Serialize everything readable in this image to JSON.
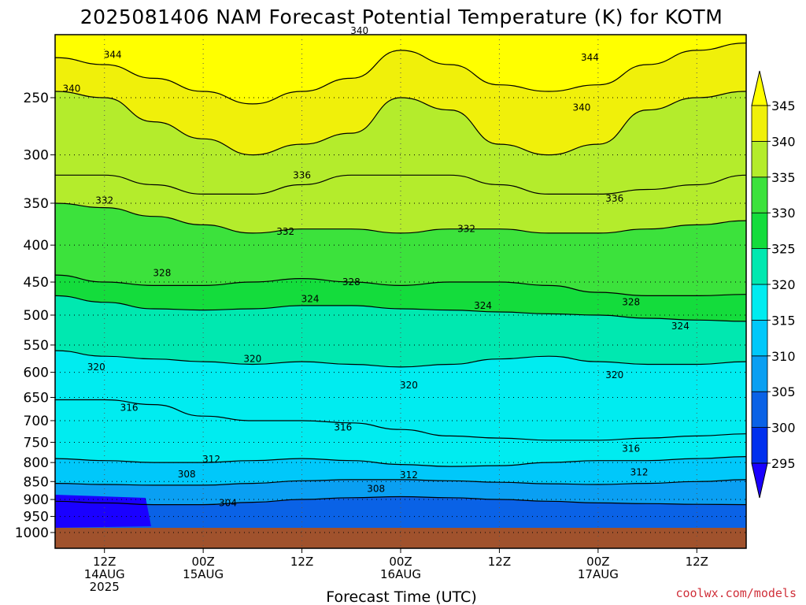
{
  "title": "2025081406 NAM Forecast Potential Temperature (K) for KOTM",
  "credit": "coolwx.com/models",
  "chart_data": {
    "type": "contour",
    "title": "2025081406 NAM Forecast Potential Temperature (K) for KOTM",
    "xlabel": "Forecast Time (UTC)",
    "ylabel": "",
    "x_range_hours": [
      0,
      84
    ],
    "y_axis": "pressure (log scale, inverted)",
    "ylim": [
      1000,
      200
    ],
    "y_ticks": [
      250,
      300,
      350,
      400,
      450,
      500,
      550,
      600,
      650,
      700,
      750,
      800,
      850,
      900,
      950,
      1000
    ],
    "x_ticks": [
      {
        "hour": 6,
        "lines": [
          "12Z",
          "14AUG",
          "2025"
        ]
      },
      {
        "hour": 18,
        "lines": [
          "00Z",
          "15AUG"
        ]
      },
      {
        "hour": 30,
        "lines": [
          "12Z"
        ]
      },
      {
        "hour": 42,
        "lines": [
          "00Z",
          "16AUG"
        ]
      },
      {
        "hour": 54,
        "lines": [
          "12Z"
        ]
      },
      {
        "hour": 66,
        "lines": [
          "00Z",
          "17AUG"
        ]
      },
      {
        "hour": 78,
        "lines": [
          "12Z"
        ]
      }
    ],
    "colorbar": {
      "levels": [
        295,
        300,
        305,
        310,
        315,
        320,
        325,
        330,
        335,
        340,
        345
      ],
      "colors": [
        "#1a00ff",
        "#0030ee",
        "#0a62e6",
        "#0a9ff2",
        "#00c8fa",
        "#00ecf0",
        "#00e8b0",
        "#14dc3c",
        "#3ce23c",
        "#b4ec2c",
        "#f0f00a",
        "#ffff00"
      ]
    },
    "isentropes": [
      {
        "value": 304,
        "pressure": [
          905,
          910,
          915,
          915,
          908,
          900,
          895,
          892,
          895,
          900,
          905,
          910,
          912,
          914,
          915
        ]
      },
      {
        "value": 308,
        "pressure": [
          855,
          858,
          860,
          860,
          855,
          848,
          845,
          845,
          848,
          852,
          856,
          858,
          855,
          850,
          845
        ]
      },
      {
        "value": 312,
        "pressure": [
          790,
          795,
          800,
          800,
          795,
          790,
          795,
          805,
          810,
          808,
          800,
          795,
          795,
          790,
          785
        ]
      },
      {
        "value": 316,
        "pressure": [
          655,
          655,
          665,
          690,
          700,
          700,
          705,
          720,
          735,
          740,
          745,
          745,
          740,
          735,
          730
        ]
      },
      {
        "value": 320,
        "pressure": [
          560,
          570,
          575,
          580,
          585,
          580,
          585,
          590,
          585,
          575,
          570,
          580,
          585,
          585,
          580
        ]
      },
      {
        "value": 324,
        "pressure": [
          470,
          480,
          490,
          492,
          490,
          485,
          485,
          490,
          492,
          495,
          498,
          500,
          505,
          508,
          510
        ]
      },
      {
        "value": 328,
        "pressure": [
          440,
          450,
          455,
          455,
          450,
          445,
          450,
          455,
          450,
          450,
          455,
          465,
          470,
          470,
          468
        ]
      },
      {
        "value": 332,
        "pressure": [
          350,
          355,
          365,
          375,
          385,
          380,
          380,
          385,
          380,
          380,
          385,
          385,
          380,
          375,
          370
        ]
      },
      {
        "value": 336,
        "pressure": [
          320,
          320,
          330,
          340,
          340,
          330,
          320,
          320,
          320,
          330,
          340,
          340,
          335,
          330,
          320
        ]
      },
      {
        "value": 340,
        "pressure": [
          245,
          250,
          270,
          285,
          300,
          290,
          280,
          250,
          260,
          290,
          300,
          290,
          260,
          250,
          245
        ]
      },
      {
        "value": 344,
        "pressure": [
          220,
          225,
          235,
          245,
          255,
          245,
          235,
          215,
          225,
          240,
          245,
          240,
          225,
          215,
          210
        ]
      }
    ],
    "isentrope_hours": [
      0,
      6,
      12,
      18,
      24,
      30,
      36,
      42,
      48,
      54,
      60,
      66,
      72,
      78,
      84
    ],
    "contour_labels": [
      {
        "text": "344",
        "hour": 7,
        "p": 218
      },
      {
        "text": "340",
        "hour": 2,
        "p": 243
      },
      {
        "text": "340",
        "hour": 37,
        "p": 202
      },
      {
        "text": "344",
        "hour": 65,
        "p": 220
      },
      {
        "text": "340",
        "hour": 64,
        "p": 258
      },
      {
        "text": "336",
        "hour": 30,
        "p": 320
      },
      {
        "text": "336",
        "hour": 68,
        "p": 345
      },
      {
        "text": "332",
        "hour": 6,
        "p": 347
      },
      {
        "text": "332",
        "hour": 28,
        "p": 383
      },
      {
        "text": "332",
        "hour": 50,
        "p": 380
      },
      {
        "text": "328",
        "hour": 13,
        "p": 437
      },
      {
        "text": "328",
        "hour": 36,
        "p": 450
      },
      {
        "text": "328",
        "hour": 70,
        "p": 480
      },
      {
        "text": "324",
        "hour": 31,
        "p": 475
      },
      {
        "text": "324",
        "hour": 52,
        "p": 485
      },
      {
        "text": "324",
        "hour": 76,
        "p": 518
      },
      {
        "text": "320",
        "hour": 5,
        "p": 590
      },
      {
        "text": "320",
        "hour": 24,
        "p": 575
      },
      {
        "text": "320",
        "hour": 43,
        "p": 625
      },
      {
        "text": "320",
        "hour": 68,
        "p": 605
      },
      {
        "text": "316",
        "hour": 9,
        "p": 672
      },
      {
        "text": "316",
        "hour": 35,
        "p": 715
      },
      {
        "text": "316",
        "hour": 70,
        "p": 765
      },
      {
        "text": "312",
        "hour": 19,
        "p": 792
      },
      {
        "text": "312",
        "hour": 43,
        "p": 832
      },
      {
        "text": "312",
        "hour": 71,
        "p": 825
      },
      {
        "text": "308",
        "hour": 16,
        "p": 830
      },
      {
        "text": "308",
        "hour": 39,
        "p": 870
      },
      {
        "text": "304",
        "hour": 21,
        "p": 910
      }
    ]
  }
}
